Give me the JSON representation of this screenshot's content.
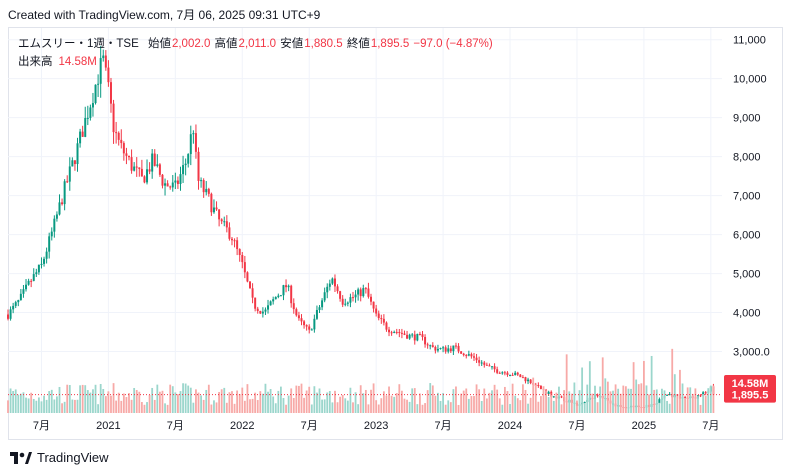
{
  "header": {
    "created_text": "Created with TradingView.com, 7月 06, 2025 09:31 UTC+9"
  },
  "legend": {
    "symbol": "エムスリー・1週・TSE",
    "open_label": "始値",
    "open_value": "2,002.0",
    "high_label": "高値",
    "high_value": "2,011.0",
    "low_label": "安値",
    "low_value": "1,880.5",
    "close_label": "終値",
    "close_value": "1,895.5",
    "change": "−97.0 (−4.87%)",
    "volume_label": "出来高",
    "volume_value": "14.58M"
  },
  "price_tag": "1,895.5",
  "volume_tag": "14.58M",
  "footer": {
    "brand": "TradingView"
  },
  "colors": {
    "up": "#089981",
    "down": "#f23645",
    "up_vol": "#9bd6cc",
    "down_vol": "#f7a9a7",
    "grid": "#f0f3fa"
  },
  "chart_data": {
    "type": "candlestick",
    "interval": "1 week",
    "exchange": "TSE",
    "y_axis": {
      "ticks": [
        3000,
        4000,
        5000,
        6000,
        7000,
        8000,
        9000,
        10000,
        11000
      ],
      "tick_labels": [
        "3,000.0",
        "4,000",
        "5,000",
        "6,000",
        "7,000",
        "8,000",
        "9,000",
        "10,000",
        "11,000"
      ],
      "ylim": [
        1500,
        11300
      ],
      "position": "right"
    },
    "x_axis": {
      "tick_labels": [
        "7月",
        "2021",
        "7月",
        "2022",
        "7月",
        "2023",
        "7月",
        "2024",
        "7月",
        "2025",
        "7月"
      ],
      "tick_x_months": [
        0,
        6,
        12,
        18,
        24,
        30,
        36,
        42,
        48,
        54,
        60
      ],
      "range_months": [
        -3,
        61
      ]
    },
    "last_close": 1895.5,
    "last_volume": "14.58M",
    "price_path": [
      [
        -3.0,
        3950
      ],
      [
        -2.0,
        4300
      ],
      [
        -1.0,
        4800
      ],
      [
        0.0,
        5200
      ],
      [
        1.0,
        6100
      ],
      [
        2.0,
        7100
      ],
      [
        3.0,
        8000
      ],
      [
        4.0,
        9000
      ],
      [
        5.0,
        10000
      ],
      [
        5.5,
        10500
      ],
      [
        6.0,
        9700
      ],
      [
        6.5,
        8700
      ],
      [
        7.0,
        8300
      ],
      [
        8.0,
        7800
      ],
      [
        9.0,
        7400
      ],
      [
        10.0,
        7900
      ],
      [
        11.0,
        7300
      ],
      [
        12.0,
        7200
      ],
      [
        13.0,
        7900
      ],
      [
        13.6,
        8800
      ],
      [
        14.0,
        7400
      ],
      [
        15.0,
        6900
      ],
      [
        16.0,
        6300
      ],
      [
        17.0,
        6000
      ],
      [
        18.0,
        5200
      ],
      [
        19.0,
        4200
      ],
      [
        20.0,
        4000
      ],
      [
        21.0,
        4400
      ],
      [
        22.0,
        4700
      ],
      [
        23.0,
        3800
      ],
      [
        24.0,
        3500
      ],
      [
        25.0,
        4200
      ],
      [
        26.0,
        4900
      ],
      [
        27.0,
        4300
      ],
      [
        28.0,
        4400
      ],
      [
        29.0,
        4600
      ],
      [
        30.0,
        3900
      ],
      [
        31.0,
        3600
      ],
      [
        32.0,
        3500
      ],
      [
        33.0,
        3400
      ],
      [
        34.0,
        3350
      ],
      [
        35.0,
        3100
      ],
      [
        36.0,
        3050
      ],
      [
        37.0,
        3100
      ],
      [
        38.0,
        2950
      ],
      [
        39.0,
        2800
      ],
      [
        40.0,
        2600
      ],
      [
        41.0,
        2500
      ],
      [
        42.0,
        2450
      ],
      [
        43.0,
        2350
      ],
      [
        44.0,
        2200
      ],
      [
        45.0,
        2000
      ],
      [
        46.0,
        1850
      ],
      [
        47.0,
        1750
      ],
      [
        48.0,
        1650
      ],
      [
        49.0,
        1750
      ],
      [
        50.0,
        1900
      ],
      [
        51.0,
        1700
      ],
      [
        52.0,
        1550
      ],
      [
        53.0,
        1600
      ],
      [
        54.0,
        1600
      ],
      [
        55.0,
        1650
      ],
      [
        56.0,
        1900
      ],
      [
        57.0,
        1850
      ],
      [
        58.0,
        1800
      ],
      [
        59.0,
        1850
      ],
      [
        60.0,
        2050
      ],
      [
        60.4,
        1895
      ]
    ]
  }
}
